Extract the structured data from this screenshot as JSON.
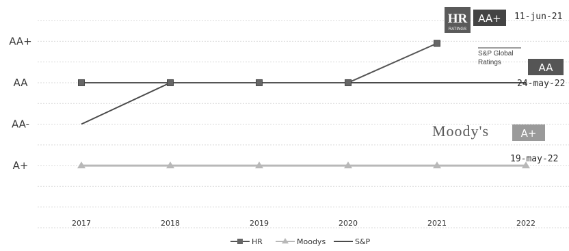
{
  "chart_data": {
    "type": "line",
    "categories": [
      "2017",
      "2018",
      "2019",
      "2020",
      "2021",
      "2022"
    ],
    "y_levels": [
      "A+",
      "AA-",
      "AA",
      "AA+"
    ],
    "y_level_values": [
      0,
      1,
      2,
      3
    ],
    "ylim": [
      -1.5,
      3.6
    ],
    "grid": true,
    "legend_position": "bottom",
    "series": [
      {
        "name": "HR",
        "color": "#555555",
        "marker": "square",
        "values": [
          2,
          2,
          2,
          2,
          2.95,
          null
        ]
      },
      {
        "name": "Moodys",
        "color": "#b8b8b8",
        "marker": "triangle",
        "values": [
          0,
          0,
          0,
          0,
          0,
          0
        ]
      },
      {
        "name": "S&P",
        "color": "#4a4a4a",
        "marker": "none",
        "values": [
          1,
          2,
          2,
          2,
          2,
          2
        ]
      }
    ],
    "annotations": {
      "hr": {
        "logo_letters": "HR",
        "logo_sub": "RATINGS",
        "rating": "AA+",
        "date": "11-jun-21"
      },
      "sp": {
        "logo_line1": "S&P Global",
        "logo_line2": "Ratings",
        "rating": "AA",
        "date": "24-may-22"
      },
      "moodys": {
        "logo": "Moody's",
        "rating": "A+",
        "date": "19-may-22"
      }
    }
  }
}
